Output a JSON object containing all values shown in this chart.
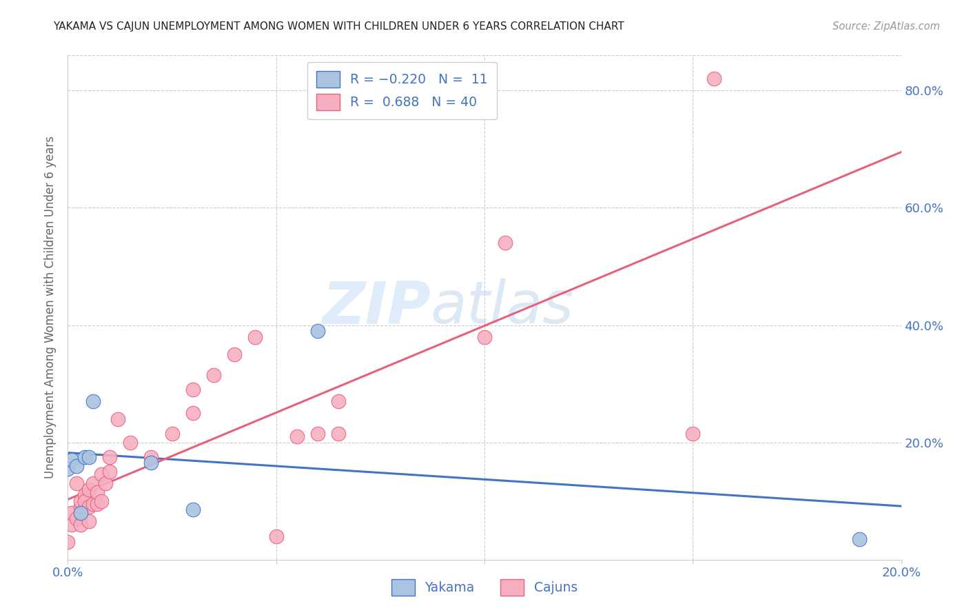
{
  "title": "YAKAMA VS CAJUN UNEMPLOYMENT AMONG WOMEN WITH CHILDREN UNDER 6 YEARS CORRELATION CHART",
  "source": "Source: ZipAtlas.com",
  "ylabel": "Unemployment Among Women with Children Under 6 years",
  "legend_entry1": "R = -0.220   N =  11",
  "legend_entry2": "R =  0.688   N = 40",
  "legend_label1": "Yakama",
  "legend_label2": "Cajuns",
  "yakama_x": [
    0.0,
    0.001,
    0.002,
    0.003,
    0.004,
    0.005,
    0.006,
    0.02,
    0.03,
    0.06,
    0.19
  ],
  "yakama_y": [
    0.155,
    0.17,
    0.16,
    0.08,
    0.175,
    0.175,
    0.27,
    0.165,
    0.085,
    0.39,
    0.035
  ],
  "cajun_x": [
    0.0,
    0.001,
    0.001,
    0.002,
    0.002,
    0.003,
    0.003,
    0.003,
    0.004,
    0.004,
    0.005,
    0.005,
    0.005,
    0.006,
    0.006,
    0.007,
    0.007,
    0.008,
    0.008,
    0.009,
    0.01,
    0.01,
    0.012,
    0.015,
    0.02,
    0.025,
    0.03,
    0.03,
    0.035,
    0.04,
    0.045,
    0.05,
    0.055,
    0.06,
    0.065,
    0.065,
    0.1,
    0.105,
    0.15,
    0.155
  ],
  "cajun_y": [
    0.03,
    0.06,
    0.08,
    0.07,
    0.13,
    0.06,
    0.09,
    0.1,
    0.11,
    0.1,
    0.065,
    0.09,
    0.12,
    0.095,
    0.13,
    0.095,
    0.115,
    0.1,
    0.145,
    0.13,
    0.15,
    0.175,
    0.24,
    0.2,
    0.175,
    0.215,
    0.25,
    0.29,
    0.315,
    0.35,
    0.38,
    0.04,
    0.21,
    0.215,
    0.27,
    0.215,
    0.38,
    0.54,
    0.215,
    0.82
  ],
  "yakama_color": "#aac4e2",
  "cajun_color": "#f5afc0",
  "yakama_line_color": "#4472C4",
  "cajun_line_color": "#e8607a",
  "background_color": "#ffffff",
  "grid_color": "#cccccc",
  "text_color": "#4472C4",
  "watermark_zip": "ZIP",
  "watermark_atlas": "atlas",
  "xlim": [
    0.0,
    0.2
  ],
  "ylim": [
    0.0,
    0.86
  ],
  "x_ticks": [
    0.0,
    0.05,
    0.1,
    0.15,
    0.2
  ],
  "y_ticks": [
    0.0,
    0.2,
    0.4,
    0.6,
    0.8
  ]
}
